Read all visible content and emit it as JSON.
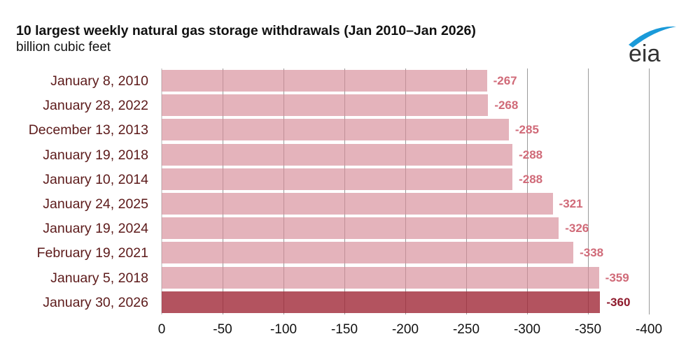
{
  "chart_data": {
    "type": "bar",
    "orientation": "horizontal",
    "title": "10 largest weekly natural gas storage withdrawals (Jan 2010–Jan 2026)",
    "subtitle": "billion cubic feet",
    "xlabel": "",
    "ylabel": "billion cubic feet",
    "xlim": [
      0,
      -400
    ],
    "grid": true,
    "legend": null,
    "categories": [
      "January 8, 2010",
      "January 28, 2022",
      "December 13, 2013",
      "January 19, 2018",
      "January 10, 2014",
      "January 24, 2025",
      "January 19, 2024",
      "February 19, 2021",
      "January 5, 2018",
      "January 30, 2026"
    ],
    "values": [
      -267,
      -268,
      -285,
      -288,
      -288,
      -321,
      -326,
      -338,
      -359,
      -360
    ],
    "value_labels": [
      "-267",
      "-268",
      "-285",
      "-288",
      "-288",
      "-321",
      "-326",
      "-338",
      "-359",
      "-360"
    ],
    "highlighted_category": "January 30, 2026",
    "x_ticks": [
      "0",
      "-50",
      "-100",
      "-150",
      "-200",
      "-250",
      "-300",
      "-350",
      "-400"
    ],
    "colors": {
      "bar": "#e4aeb5",
      "highlight_bar": "#ae525c",
      "value_label": "#d06a78",
      "highlight_label": "#8e1a2c",
      "category_label": "#5c1a1a"
    }
  },
  "header": {
    "title": "10 largest weekly natural gas storage withdrawals (Jan 2010–Jan 2026)",
    "subtitle": "billion cubic feet"
  },
  "logo": {
    "text": "eia",
    "icon": "eia-logo-icon"
  }
}
